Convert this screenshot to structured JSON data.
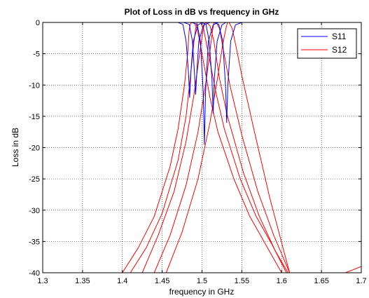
{
  "chart_data": {
    "type": "line",
    "title": "Plot of Loss in dB vs frequency in GHz",
    "xlabel": "frequency in GHz",
    "ylabel": "Loss in dB",
    "xlim": [
      1.3,
      1.7
    ],
    "ylim": [
      -40,
      0
    ],
    "xticks": [
      "1.3",
      "1.35",
      "1.4",
      "1.45",
      "1.5",
      "1.55",
      "1.6",
      "1.65",
      "1.7"
    ],
    "yticks": [
      "0",
      "-5",
      "-10",
      "-15",
      "-20",
      "-25",
      "-30",
      "-35",
      "-40"
    ],
    "grid": true,
    "legend_position": "top-right",
    "legend": [
      {
        "label": "S11",
        "color": "#0000ff"
      },
      {
        "label": "S12",
        "color": "#ff0000"
      }
    ],
    "series": [
      {
        "name": "S11",
        "color": "#0000ff",
        "curves": [
          {
            "x": [
              1.3,
              1.47,
              1.476,
              1.48,
              1.483,
              1.4845,
              1.486,
              1.489,
              1.495,
              1.5,
              1.55,
              1.7
            ],
            "y": [
              0,
              0,
              -0.3,
              -3,
              -8,
              -12,
              -8,
              -3,
              -0.4,
              0,
              0,
              0
            ]
          },
          {
            "x": [
              1.3,
              1.477,
              1.484,
              1.488,
              1.4905,
              1.492,
              1.4935,
              1.496,
              1.502,
              1.51,
              1.7
            ],
            "y": [
              0,
              0,
              -0.3,
              -3,
              -8,
              -11.5,
              -8,
              -3,
              -0.4,
              0,
              0
            ]
          },
          {
            "x": [
              1.3,
              1.487,
              1.494,
              1.498,
              1.5015,
              1.503,
              1.5045,
              1.508,
              1.514,
              1.52,
              1.7
            ],
            "y": [
              0,
              0,
              -0.3,
              -3,
              -11,
              -19.5,
              -11,
              -3,
              -0.4,
              0,
              0
            ]
          },
          {
            "x": [
              1.3,
              1.499,
              1.505,
              1.509,
              1.5125,
              1.514,
              1.5155,
              1.519,
              1.525,
              1.53,
              1.7
            ],
            "y": [
              0,
              0,
              -0.3,
              -3,
              -9,
              -14.5,
              -9,
              -3,
              -0.4,
              0,
              0
            ]
          },
          {
            "x": [
              1.3,
              1.515,
              1.521,
              1.526,
              1.5295,
              1.531,
              1.5325,
              1.536,
              1.542,
              1.55,
              1.7
            ],
            "y": [
              0,
              0,
              -0.3,
              -3,
              -10,
              -16,
              -10,
              -3,
              -0.4,
              0,
              0
            ]
          }
        ]
      },
      {
        "name": "S12",
        "color": "#ff0000",
        "curves": [
          {
            "x": [
              1.4,
              1.42,
              1.44,
              1.46,
              1.47,
              1.478,
              1.482,
              1.484,
              1.486,
              1.49,
              1.494,
              1.5,
              1.51,
              1.52,
              1.54,
              1.56,
              1.58,
              1.6
            ],
            "y": [
              -40,
              -36,
              -31,
              -23,
              -17,
              -10,
              -5,
              -1,
              -0.1,
              0,
              -1,
              -5,
              -12,
              -17.5,
              -25,
              -31,
              -35.5,
              -40
            ]
          },
          {
            "x": [
              1.41,
              1.43,
              1.45,
              1.47,
              1.48,
              1.486,
              1.49,
              1.492,
              1.494,
              1.498,
              1.502,
              1.508,
              1.518,
              1.528,
              1.548,
              1.568,
              1.588,
              1.606
            ],
            "y": [
              -40,
              -36,
              -30.5,
              -22,
              -15,
              -8,
              -3,
              -1,
              0,
              0,
              -1,
              -5,
              -11.5,
              -17,
              -25,
              -31,
              -35.5,
              -40
            ]
          },
          {
            "x": [
              1.425,
              1.445,
              1.465,
              1.48,
              1.49,
              1.497,
              1.501,
              1.503,
              1.505,
              1.51,
              1.515,
              1.522,
              1.532,
              1.552,
              1.572,
              1.592,
              1.608
            ],
            "y": [
              -40,
              -34,
              -27,
              -19,
              -11.5,
              -5,
              -1.5,
              -0.2,
              0,
              -0.5,
              -3,
              -9,
              -15,
              -24,
              -31,
              -36.5,
              -40
            ]
          },
          {
            "x": [
              1.44,
              1.46,
              1.48,
              1.495,
              1.505,
              1.51,
              1.513,
              1.515,
              1.518,
              1.522,
              1.527,
              1.535,
              1.55,
              1.57,
              1.59,
              1.61
            ],
            "y": [
              -40,
              -34,
              -26,
              -17.5,
              -9.5,
              -4.5,
              -1.5,
              0,
              0,
              -1,
              -4.5,
              -10,
              -18,
              -27,
              -34,
              -40
            ]
          },
          {
            "x": [
              1.455,
              1.475,
              1.495,
              1.51,
              1.52,
              1.526,
              1.53,
              1.532,
              1.534,
              1.538,
              1.543,
              1.55,
              1.565,
              1.585,
              1.61
            ],
            "y": [
              -40,
              -33.5,
              -25,
              -16,
              -8.5,
              -3.5,
              -1,
              0,
              0,
              -1,
              -4,
              -8.5,
              -17,
              -28,
              -40
            ]
          },
          {
            "x": [
              1.68,
              1.69,
              1.7
            ],
            "y": [
              -40,
              -39.5,
              -39
            ]
          }
        ]
      }
    ]
  }
}
